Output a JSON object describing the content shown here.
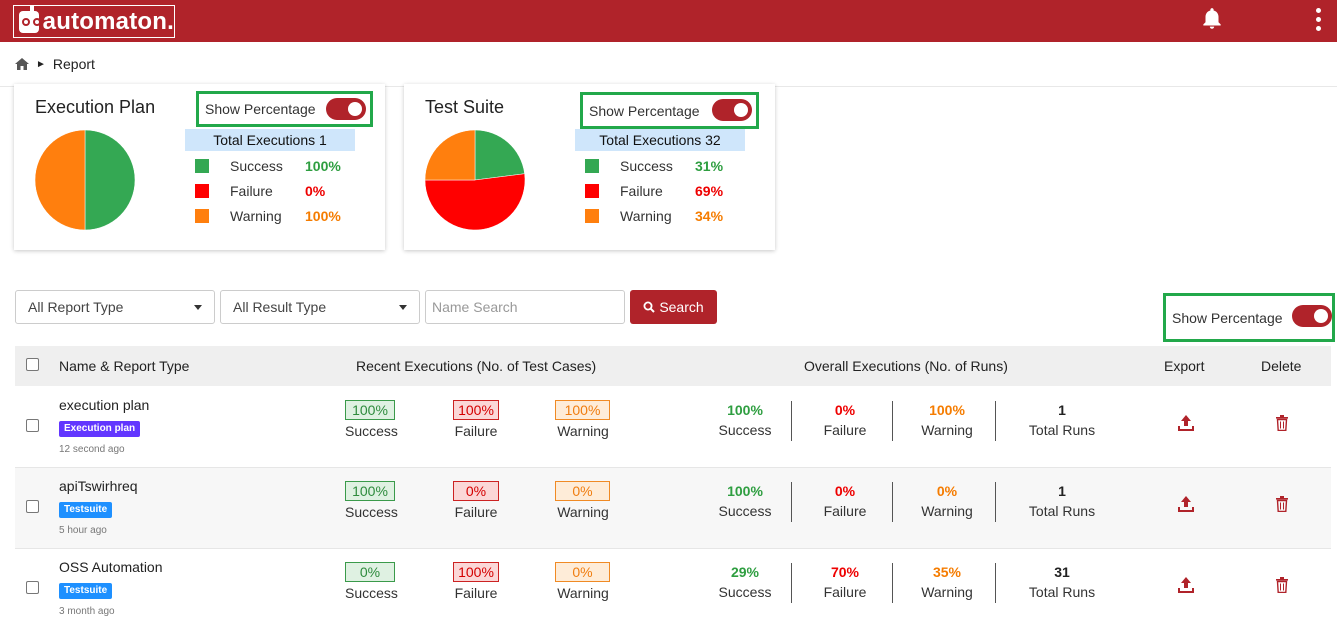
{
  "app": {
    "logo_text": "automaton."
  },
  "header": {
    "bell_icon": "bell-icon",
    "menu_icon": "kebab-menu-icon"
  },
  "breadcrumb": {
    "home_icon": "home-icon",
    "separator": "►",
    "current": "Report"
  },
  "cards": [
    {
      "title": "Execution Plan",
      "toggle_label": "Show Percentage",
      "total_label": "Total Executions 1",
      "legend": [
        {
          "label": "Success",
          "value": "100%",
          "color": "#34a853"
        },
        {
          "label": "Failure",
          "value": "0%",
          "color": "#ff0000"
        },
        {
          "label": "Warning",
          "value": "100%",
          "color": "#ff7f0e"
        }
      ],
      "pie_shares": [
        0.5,
        0,
        0.5
      ]
    },
    {
      "title": "Test Suite",
      "toggle_label": "Show Percentage",
      "total_label": "Total Executions 32",
      "legend": [
        {
          "label": "Success",
          "value": "31%",
          "color": "#34a853"
        },
        {
          "label": "Failure",
          "value": "69%",
          "color": "#ff0000"
        },
        {
          "label": "Warning",
          "value": "34%",
          "color": "#ff7f0e"
        }
      ],
      "pie_shares": [
        0.23,
        0.52,
        0.25
      ]
    }
  ],
  "filters": {
    "report_type": "All Report Type",
    "result_type": "All Result Type",
    "search_placeholder": "Name Search",
    "search_button": "Search",
    "toggle_label": "Show Percentage"
  },
  "table": {
    "headers": {
      "name": "Name & Report Type",
      "recent": "Recent Executions (No. of Test Cases)",
      "overall": "Overall Executions (No. of Runs)",
      "export": "Export",
      "delete": "Delete"
    },
    "labels": {
      "success": "Success",
      "failure": "Failure",
      "warning": "Warning",
      "total_runs": "Total Runs"
    },
    "rows": [
      {
        "name": "execution plan",
        "type": "Execution plan",
        "time": "12 second ago",
        "recent": {
          "success": "100%",
          "failure": "100%",
          "warning": "100%"
        },
        "overall": {
          "success": "100%",
          "failure": "0%",
          "warning": "100%",
          "runs": "1"
        }
      },
      {
        "name": "apiTswirhreq",
        "type": "Testsuite",
        "time": "5 hour ago",
        "recent": {
          "success": "100%",
          "failure": "0%",
          "warning": "0%"
        },
        "overall": {
          "success": "100%",
          "failure": "0%",
          "warning": "0%",
          "runs": "1"
        }
      },
      {
        "name": "OSS Automation",
        "type": "Testsuite",
        "time": "3 month ago",
        "recent": {
          "success": "0%",
          "failure": "100%",
          "warning": "0%"
        },
        "overall": {
          "success": "29%",
          "failure": "70%",
          "warning": "35%",
          "runs": "31"
        }
      }
    ]
  }
}
